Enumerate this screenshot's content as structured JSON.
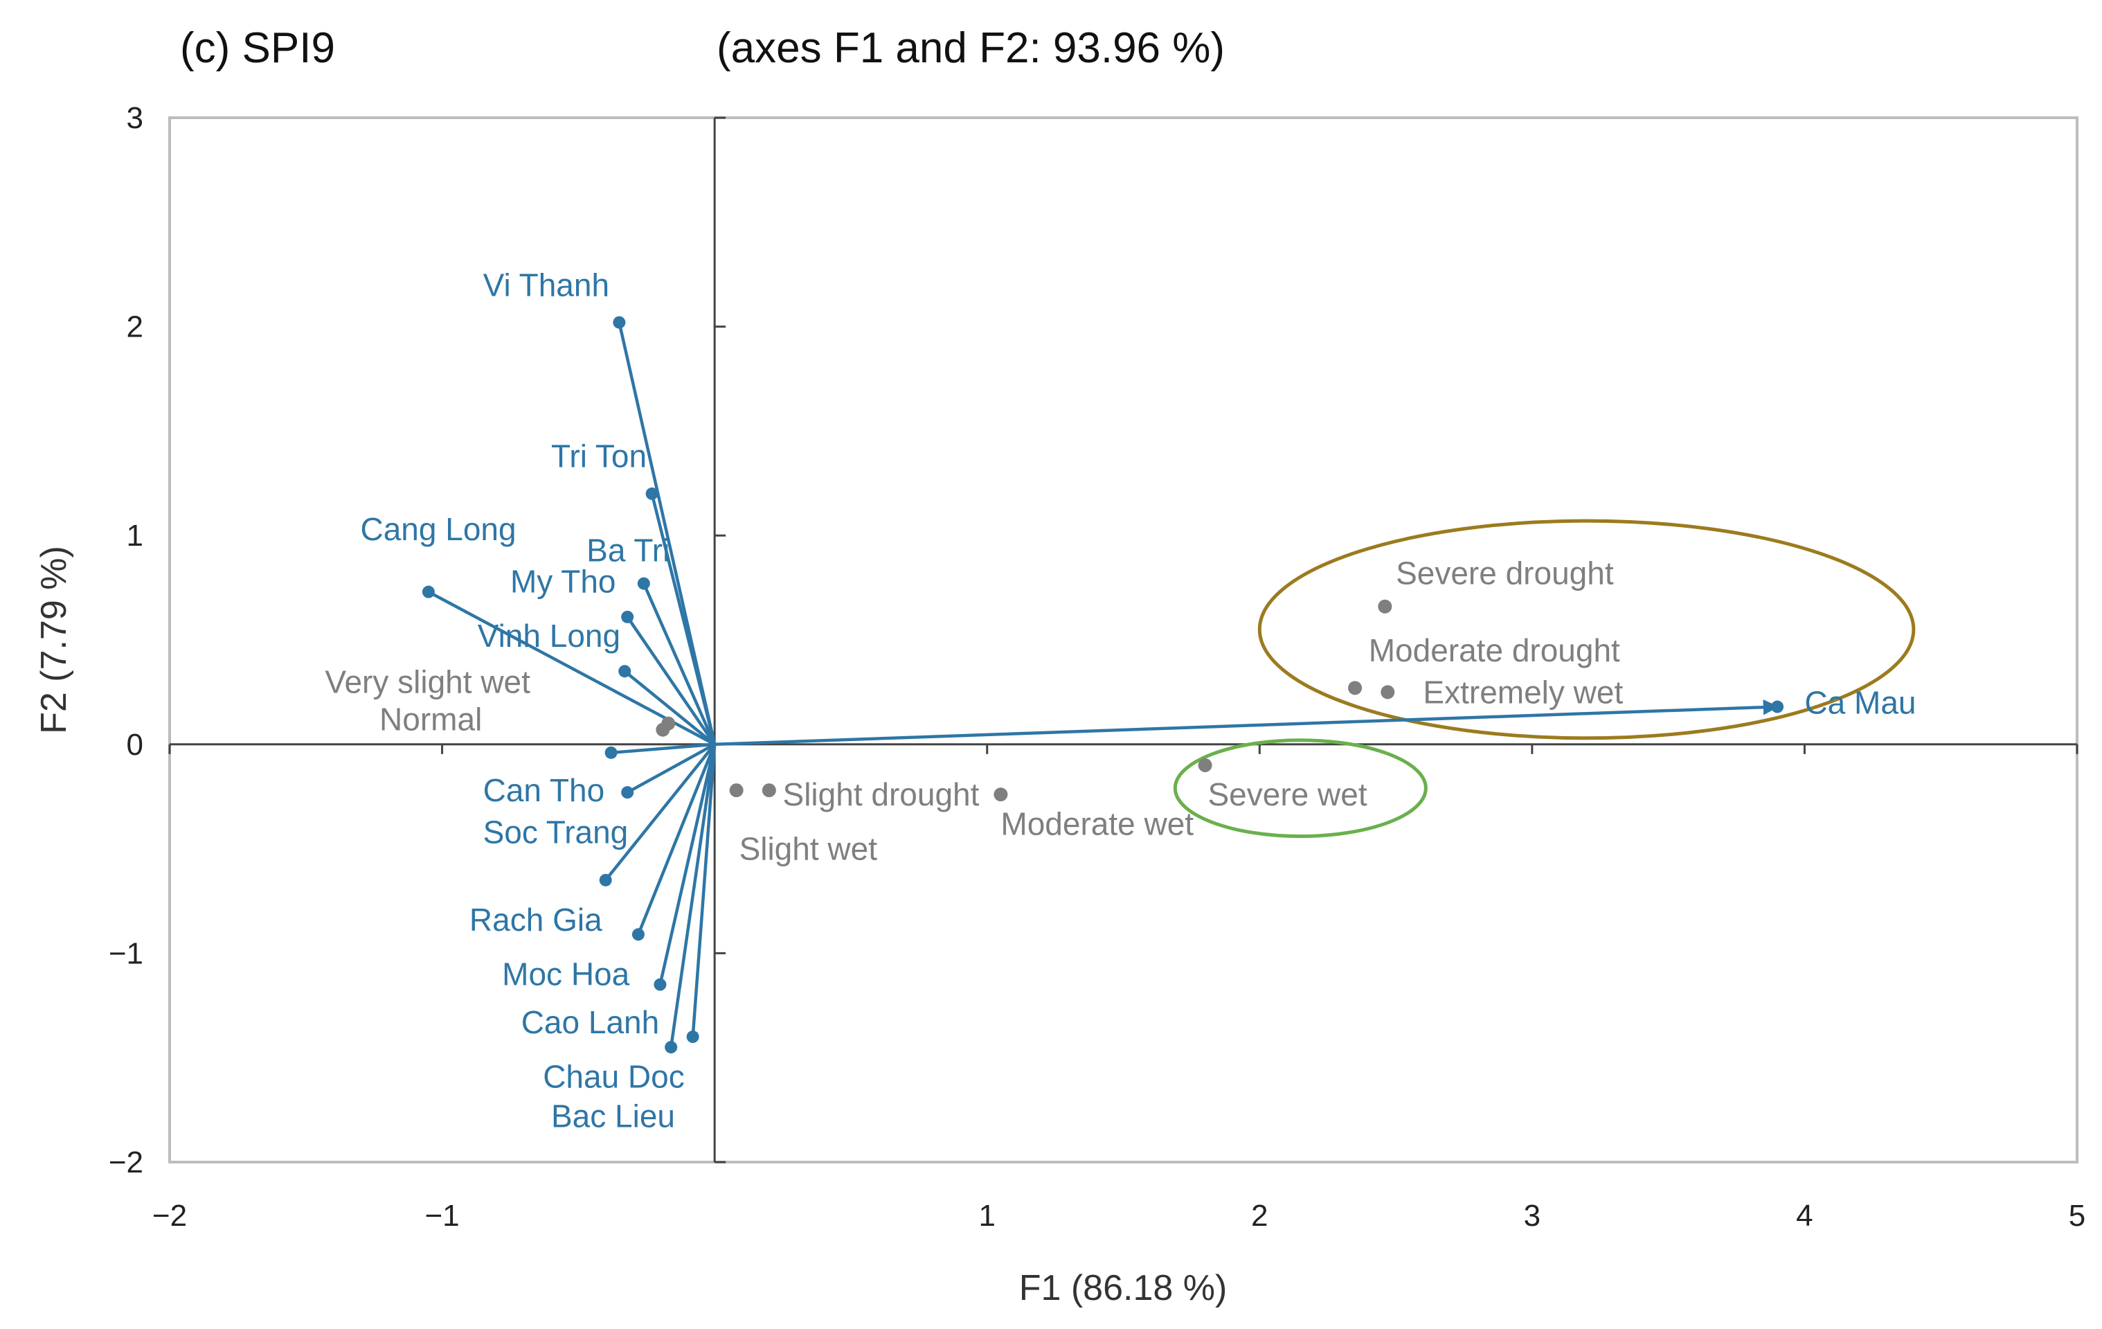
{
  "chart_data": {
    "type": "scatter",
    "subtype": "pca-biplot",
    "panel_label": "(c) SPI9",
    "title": "(axes F1 and F2: 93.96 %)",
    "xlabel": "F1 (86.18 %)",
    "ylabel": "F2 (7.79 %)",
    "xlim": [
      -2,
      5
    ],
    "ylim": [
      -2,
      3
    ],
    "xticks": [
      -2,
      -1,
      1,
      2,
      3,
      4,
      5
    ],
    "yticks": [
      -2,
      -1,
      0,
      1,
      2,
      3
    ],
    "x_tick_labels": [
      "−2",
      "−1",
      "1",
      "2",
      "3",
      "4",
      "5"
    ],
    "y_tick_labels": [
      "−2",
      "−1",
      "0",
      "1",
      "2",
      "3"
    ],
    "origin": [
      0,
      0
    ],
    "variables": [
      {
        "name": "Vi Thanh",
        "x": -0.35,
        "y": 2.02,
        "label": [
          -0.85,
          2.2
        ]
      },
      {
        "name": "Tri Ton",
        "x": -0.23,
        "y": 1.2,
        "label": [
          -0.6,
          1.38
        ]
      },
      {
        "name": "Cang Long",
        "x": -1.05,
        "y": 0.73,
        "label": [
          -1.3,
          1.03
        ]
      },
      {
        "name": "Ba Tri",
        "x": -0.26,
        "y": 0.77,
        "label": [
          -0.47,
          0.93
        ]
      },
      {
        "name": "My Tho",
        "x": -0.32,
        "y": 0.61,
        "label": [
          -0.75,
          0.78
        ]
      },
      {
        "name": "Vinh Long",
        "x": -0.33,
        "y": 0.35,
        "label": [
          -0.87,
          0.52
        ]
      },
      {
        "name": "Can Tho",
        "x": -0.38,
        "y": -0.04,
        "label": [
          -0.85,
          -0.22
        ]
      },
      {
        "name": "Soc Trang",
        "x": -0.32,
        "y": -0.23,
        "label": [
          -0.85,
          -0.42
        ]
      },
      {
        "name": "Rach Gia",
        "x": -0.4,
        "y": -0.65,
        "label": [
          -0.9,
          -0.84
        ]
      },
      {
        "name": "Moc Hoa",
        "x": -0.28,
        "y": -0.91,
        "label": [
          -0.78,
          -1.1
        ]
      },
      {
        "name": "Cao Lanh",
        "x": -0.2,
        "y": -1.15,
        "label": [
          -0.71,
          -1.33
        ]
      },
      {
        "name": "Chau Doc",
        "x": -0.08,
        "y": -1.4,
        "label": [
          -0.63,
          -1.59
        ]
      },
      {
        "name": "Bac Lieu",
        "x": -0.16,
        "y": -1.45,
        "label": [
          -0.6,
          -1.78
        ]
      },
      {
        "name": "Ca Mau",
        "x": 3.9,
        "y": 0.18,
        "label": [
          4.0,
          0.2
        ]
      }
    ],
    "observations": [
      {
        "name": "Very slight wet",
        "x": -0.17,
        "y": 0.1,
        "label": [
          -1.43,
          0.3
        ]
      },
      {
        "name": "Normal",
        "x": -0.19,
        "y": 0.07,
        "label": [
          -1.23,
          0.12
        ]
      },
      {
        "name": "Slight drought",
        "x": 0.2,
        "y": -0.22,
        "label": [
          0.25,
          -0.24
        ]
      },
      {
        "name": "Slight wet",
        "x": 0.08,
        "y": -0.22,
        "label": [
          0.09,
          -0.5
        ]
      },
      {
        "name": "Moderate wet",
        "x": 1.05,
        "y": -0.24,
        "label": [
          1.05,
          -0.38
        ]
      },
      {
        "name": "Severe wet",
        "x": 1.8,
        "y": -0.1,
        "label": [
          1.81,
          -0.24
        ]
      },
      {
        "name": "Severe drought",
        "x": 2.46,
        "y": 0.66,
        "label": [
          2.5,
          0.82
        ]
      },
      {
        "name": "Moderate drought",
        "x": 2.35,
        "y": 0.27,
        "label": [
          2.4,
          0.45
        ]
      },
      {
        "name": "Extremely wet",
        "x": 2.47,
        "y": 0.25,
        "label": [
          2.6,
          0.25
        ]
      }
    ],
    "highlight_ellipses": [
      {
        "name": "drought-ellipse",
        "center": [
          3.2,
          0.55
        ],
        "radii": [
          1.2,
          0.52
        ],
        "color": "#9c7b1e"
      },
      {
        "name": "wet-ellipse",
        "center": [
          2.15,
          -0.21
        ],
        "radii": [
          0.46,
          0.23
        ],
        "color": "#6ab04c"
      }
    ],
    "colors": {
      "vectors": "#2e76a6",
      "variable_labels": "#2e76a6",
      "observations": "#7f7f7f",
      "axes": "#444444"
    }
  }
}
